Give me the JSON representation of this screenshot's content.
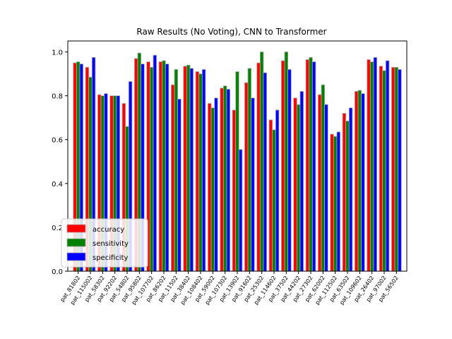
{
  "chart_data": {
    "type": "bar",
    "title": "Raw Results (No Voting), CNN to Transformer",
    "xlabel": "",
    "ylabel": "",
    "ylim": [
      0,
      1.05
    ],
    "yticks": [
      "0.0",
      "0.2",
      "0.4",
      "0.6",
      "0.8",
      "1.0"
    ],
    "ytick_values": [
      0,
      0.2,
      0.4,
      0.6,
      0.8,
      1.0
    ],
    "grid": false,
    "legend_position": "lower-left",
    "categories": [
      "pat_81802",
      "pat_115002",
      "pat_58302",
      "pat_92202",
      "pat_54802",
      "pat_95802",
      "pat_107702",
      "pat_86202",
      "pat_11502",
      "pat_38402",
      "pat_108402",
      "pat_59002",
      "pat_107302",
      "pat_13902",
      "pat_91602",
      "pat_25302",
      "pat_114602",
      "pat_37502",
      "pat_44202",
      "pat_27302",
      "pat_62002",
      "pat_112502",
      "pat_63502",
      "pat_109602",
      "pat_26402",
      "pat_97002",
      "pat_56502"
    ],
    "series": [
      {
        "name": "accuracy",
        "color": "#ff0000",
        "values": [
          0.95,
          0.93,
          0.805,
          0.8,
          0.765,
          0.97,
          0.955,
          0.955,
          0.85,
          0.935,
          0.91,
          0.765,
          0.835,
          0.735,
          0.86,
          0.95,
          0.69,
          0.96,
          0.79,
          0.965,
          0.805,
          0.625,
          0.72,
          0.82,
          0.965,
          0.935,
          0.93
        ]
      },
      {
        "name": "sensitivity",
        "color": "#008000",
        "values": [
          0.955,
          0.885,
          0.8,
          0.8,
          0.66,
          0.995,
          0.93,
          0.96,
          0.92,
          0.94,
          0.9,
          0.745,
          0.845,
          0.91,
          0.925,
          1.0,
          0.645,
          1.0,
          0.76,
          0.975,
          0.85,
          0.615,
          0.685,
          0.825,
          0.955,
          0.915,
          0.93
        ]
      },
      {
        "name": "specificity",
        "color": "#0000ff",
        "values": [
          0.945,
          0.975,
          0.81,
          0.8,
          0.865,
          0.945,
          0.985,
          0.945,
          0.785,
          0.925,
          0.92,
          0.79,
          0.83,
          0.555,
          0.79,
          0.905,
          0.735,
          0.92,
          0.82,
          0.955,
          0.76,
          0.635,
          0.745,
          0.81,
          0.975,
          0.96,
          0.92
        ]
      }
    ]
  }
}
